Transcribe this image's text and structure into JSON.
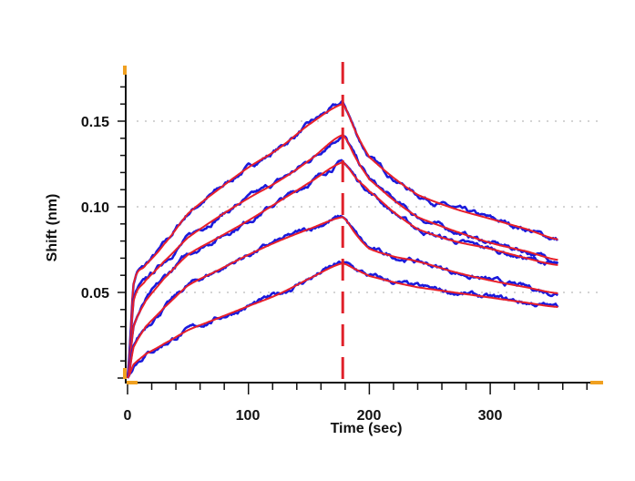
{
  "chart_data": {
    "type": "line",
    "title": "",
    "xlabel": "Time (sec)",
    "ylabel": "Shift (nm)",
    "xlim": [
      0,
      390
    ],
    "ylim": [
      -0.003,
      0.182
    ],
    "x_ticks": [
      "0",
      "100",
      "200",
      "300"
    ],
    "y_ticks": [
      "0.05",
      "0.10",
      "0.15"
    ],
    "grid": "horizontal dotted at major y ticks",
    "legend": "none",
    "marker_line": {
      "x": 178,
      "style": "dashed",
      "color": "#e0202a"
    },
    "colors": {
      "raw": "#1a1adc",
      "fit": "#e8202a",
      "cursor": "#f0a020"
    },
    "x": [
      0,
      5,
      15,
      30,
      50,
      75,
      100,
      125,
      150,
      178,
      190,
      200,
      220,
      240,
      270,
      300,
      330,
      356
    ],
    "series": [
      {
        "values": [
          0,
          0.055,
          0.066,
          0.078,
          0.096,
          0.11,
          0.123,
          0.134,
          0.148,
          0.16,
          0.142,
          0.129,
          0.117,
          0.107,
          0.099,
          0.093,
          0.087,
          0.081
        ]
      },
      {
        "values": [
          0,
          0.045,
          0.057,
          0.068,
          0.082,
          0.094,
          0.105,
          0.115,
          0.127,
          0.142,
          0.127,
          0.116,
          0.104,
          0.094,
          0.086,
          0.079,
          0.074,
          0.069
        ]
      },
      {
        "values": [
          0,
          0.03,
          0.045,
          0.058,
          0.072,
          0.082,
          0.092,
          0.103,
          0.114,
          0.126,
          0.116,
          0.109,
          0.097,
          0.087,
          0.08,
          0.0755,
          0.07,
          0.066
        ]
      },
      {
        "values": [
          0,
          0.018,
          0.03,
          0.041,
          0.054,
          0.063,
          0.072,
          0.08,
          0.087,
          0.094,
          0.083,
          0.0755,
          0.071,
          0.068,
          0.062,
          0.057,
          0.053,
          0.0495
        ]
      },
      {
        "values": [
          0,
          0.008,
          0.014,
          0.02,
          0.028,
          0.035,
          0.042,
          0.049,
          0.058,
          0.067,
          0.063,
          0.0596,
          0.056,
          0.053,
          0.05,
          0.047,
          0.044,
          0.0415
        ]
      }
    ]
  }
}
